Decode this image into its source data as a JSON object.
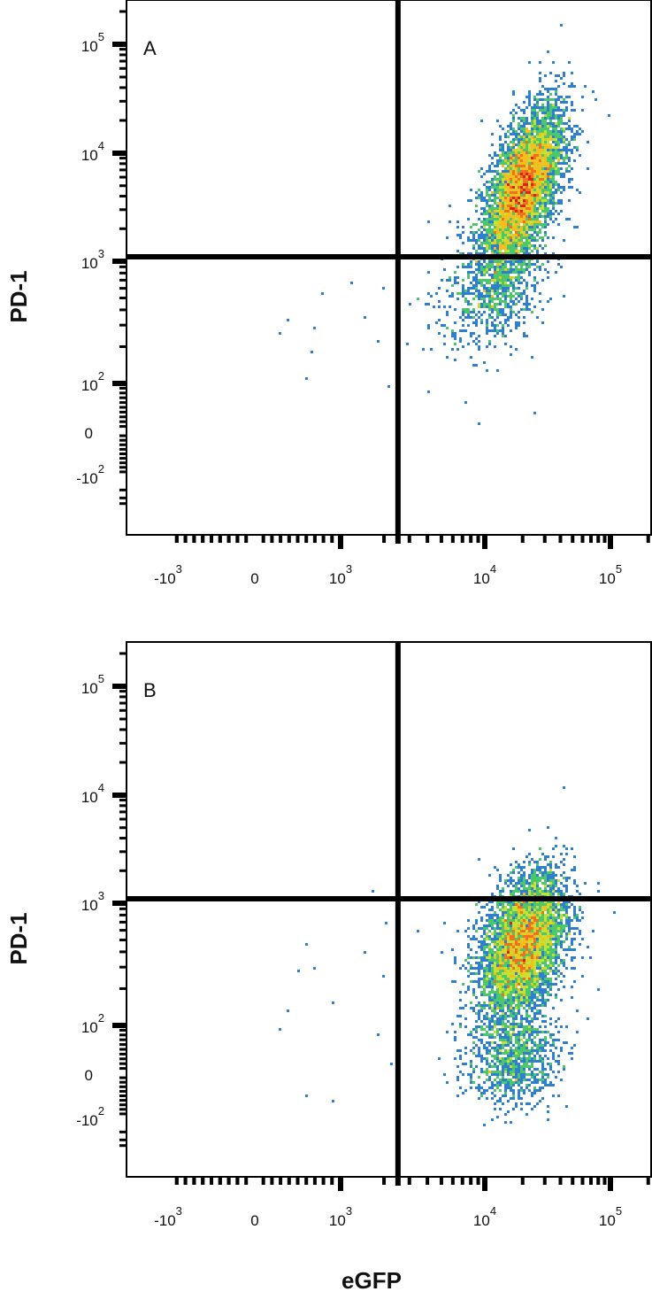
{
  "chart_data": [
    {
      "type": "scatter",
      "subtype": "flow-cytometry-density-plot",
      "panel_label": "A",
      "xlabel": "",
      "ylabel": "PD-1",
      "x_scale": "biexponential",
      "y_scale": "biexponential",
      "x_ticks": [
        {
          "value": -1000,
          "label": "-10",
          "exp": "3"
        },
        {
          "value": 0,
          "label": "0",
          "exp": ""
        },
        {
          "value": 1000,
          "label": "10",
          "exp": "3"
        },
        {
          "value": 10000,
          "label": "10",
          "exp": "4"
        },
        {
          "value": 100000,
          "label": "10",
          "exp": "5"
        }
      ],
      "y_ticks": [
        {
          "value": 100000,
          "label": "10",
          "exp": "5"
        },
        {
          "value": 10000,
          "label": "10",
          "exp": "4"
        },
        {
          "value": 1000,
          "label": "10",
          "exp": "3"
        },
        {
          "value": 100,
          "label": "10",
          "exp": "2"
        },
        {
          "value": 0,
          "label": "0",
          "exp": ""
        },
        {
          "value": -100,
          "label": "-10",
          "exp": "2"
        }
      ],
      "quadrant_gate": {
        "x": 2500,
        "y": 1100
      },
      "populations": [
        {
          "center_x": 20000,
          "center_y": 4500,
          "sd_log_x": 0.16,
          "sd_log_y": 0.38,
          "correlation": 0.6,
          "events": 5200
        },
        {
          "center_x": 12000,
          "center_y": 600,
          "sd_log_x": 0.2,
          "sd_log_y": 0.25,
          "correlation": 0.3,
          "events": 700
        }
      ],
      "outliers": [
        [
          800,
          550
        ],
        [
          700,
          280
        ],
        [
          650,
          180
        ],
        [
          600,
          110
        ],
        [
          1500,
          350
        ],
        [
          2000,
          600
        ],
        [
          1800,
          220
        ],
        [
          2200,
          95
        ],
        [
          400,
          330
        ],
        [
          300,
          260
        ],
        [
          4000,
          80
        ],
        [
          7500,
          60
        ],
        [
          9000,
          15
        ],
        [
          25000,
          40
        ],
        [
          40000,
          150000
        ],
        [
          60000,
          25000
        ],
        [
          28000,
          70000
        ],
        [
          3500,
          500
        ],
        [
          5000,
          300
        ],
        [
          1200,
          650
        ]
      ],
      "density_colors": [
        "#2b3fa8",
        "#2f7fd0",
        "#2fc8d8",
        "#4cc86a",
        "#c8e030",
        "#f0c020",
        "#f07020",
        "#e02010"
      ]
    },
    {
      "type": "scatter",
      "subtype": "flow-cytometry-density-plot",
      "panel_label": "B",
      "xlabel": "eGFP",
      "ylabel": "PD-1",
      "x_scale": "biexponential",
      "y_scale": "biexponential",
      "x_ticks": [
        {
          "value": -1000,
          "label": "-10",
          "exp": "3"
        },
        {
          "value": 0,
          "label": "0",
          "exp": ""
        },
        {
          "value": 1000,
          "label": "10",
          "exp": "3"
        },
        {
          "value": 10000,
          "label": "10",
          "exp": "4"
        },
        {
          "value": 100000,
          "label": "10",
          "exp": "5"
        }
      ],
      "y_ticks": [
        {
          "value": 100000,
          "label": "10",
          "exp": "5"
        },
        {
          "value": 10000,
          "label": "10",
          "exp": "4"
        },
        {
          "value": 1000,
          "label": "10",
          "exp": "3"
        },
        {
          "value": 100,
          "label": "10",
          "exp": "2"
        },
        {
          "value": 0,
          "label": "0",
          "exp": ""
        },
        {
          "value": -100,
          "label": "-10",
          "exp": "2"
        }
      ],
      "quadrant_gate": {
        "x": 2500,
        "y": 1100
      },
      "populations": [
        {
          "center_x": 20000,
          "center_y": 450,
          "sd_log_x": 0.17,
          "sd_log_y": 0.3,
          "correlation": 0.4,
          "events": 4800
        },
        {
          "center_x": 17000,
          "center_y": 30,
          "sd_log_x": 0.18,
          "sd_log_y": 0.5,
          "correlation": 0.1,
          "events": 900
        }
      ],
      "outliers": [
        [
          600,
          450
        ],
        [
          700,
          300
        ],
        [
          500,
          280
        ],
        [
          900,
          150
        ],
        [
          400,
          130
        ],
        [
          300,
          90
        ],
        [
          1500,
          400
        ],
        [
          2000,
          250
        ],
        [
          1800,
          80
        ],
        [
          2300,
          20
        ],
        [
          900,
          -60
        ],
        [
          600,
          -50
        ],
        [
          1700,
          1300
        ],
        [
          2100,
          700
        ],
        [
          3500,
          600
        ],
        [
          5000,
          400
        ],
        [
          60000,
          350
        ],
        [
          80000,
          200
        ]
      ],
      "density_colors": [
        "#2b3fa8",
        "#2f7fd0",
        "#2fc8d8",
        "#4cc86a",
        "#c8e030",
        "#f0c020",
        "#f07020",
        "#e02010"
      ]
    }
  ]
}
